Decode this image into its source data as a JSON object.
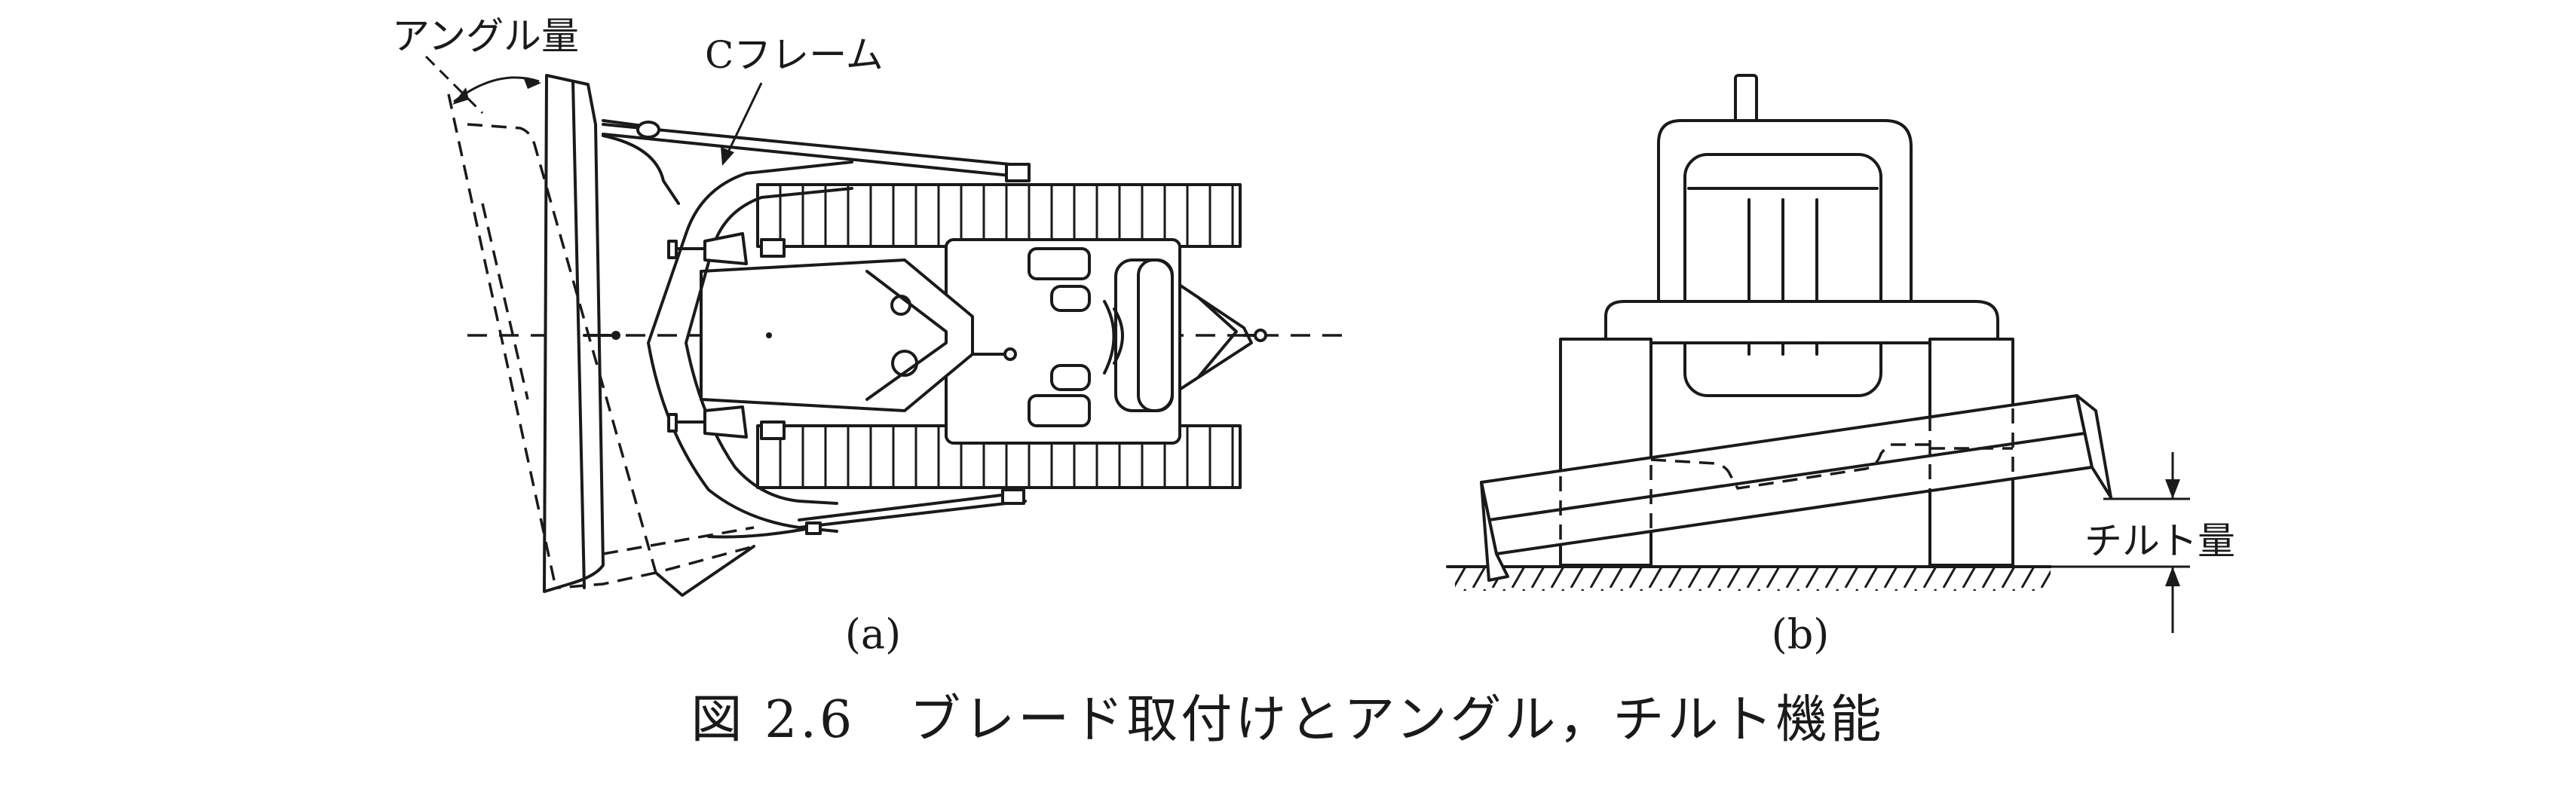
{
  "figure": {
    "caption": "図 2.6　ブレード取付けとアングル，チルト機能",
    "panel_a": {
      "label": "(a)",
      "angle_label": "アングル量",
      "frame_label": "Cフレーム"
    },
    "panel_b": {
      "label": "(b)",
      "tilt_label": "チルト量"
    }
  }
}
